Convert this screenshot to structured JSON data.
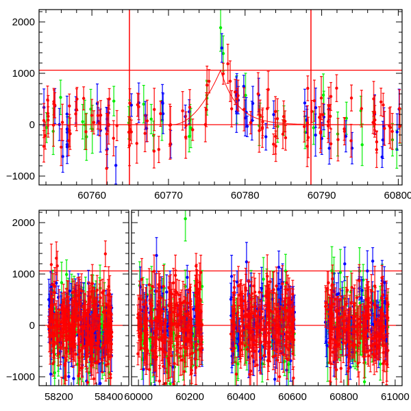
{
  "chart_data": [
    {
      "type": "scatter",
      "panel": "top",
      "title": "",
      "xlabel": "",
      "ylabel": "",
      "xlim": [
        60753.1,
        60800.5
      ],
      "ylim": [
        -1173,
        2240
      ],
      "xticks": [
        60760,
        60770,
        60780,
        60790,
        60800
      ],
      "xtick_labels": [
        "60760",
        "60770",
        "60780",
        "60790",
        "60800"
      ],
      "yticks": [
        -1000,
        0,
        1000,
        2000
      ],
      "ytick_labels": [
        "−1000",
        "0",
        "1000",
        "2000"
      ],
      "hlines": [
        0,
        1060
      ],
      "vlines": [
        60764.9,
        60788.6
      ],
      "reference_color": "#ff0000",
      "model_curve": {
        "baseline": 0,
        "peak": 1060,
        "t_peak": 60776.8,
        "rise_start": 60770.5,
        "decay_tau_days": 2.2
      },
      "series": [
        {
          "name": "blue",
          "color": "#0000ff",
          "error_bars": true
        },
        {
          "name": "green",
          "color": "#00ee00",
          "error_bars": true
        },
        {
          "name": "red",
          "color": "#ff0000",
          "error_bars": true
        }
      ],
      "time_range_observed": [
        60753.5,
        60800.5
      ],
      "scatter_rms": 300,
      "seed": 7
    },
    {
      "type": "scatter",
      "panel": "bottom",
      "title": "",
      "xlabel": "",
      "ylabel": "",
      "broken_axis": true,
      "segments": [
        {
          "xlim": [
            58121,
            58480
          ],
          "xticks": [
            58200,
            58400
          ],
          "xtick_labels": [
            "58200",
            "58400"
          ],
          "clusters": [
            [
              58160,
              58413
            ]
          ]
        },
        {
          "xlim": [
            59973,
            61027
          ],
          "xticks": [
            60000,
            60200,
            60400,
            60600,
            60800,
            61000
          ],
          "xtick_labels": [
            "60000",
            "60200",
            "60400",
            "60600",
            "60800",
            "61000"
          ],
          "clusters": [
            [
              59997,
              60248
            ],
            [
              60360,
              60608
            ],
            [
              60728,
              60973
            ]
          ]
        }
      ],
      "ylim": [
        -1173,
        2240
      ],
      "yticks": [
        -1000,
        0,
        1000,
        2000
      ],
      "ytick_labels": [
        "−1000",
        "0",
        "1000",
        "2000"
      ],
      "hlines": [
        0,
        1060
      ],
      "series": [
        {
          "name": "blue",
          "color": "#0000ff",
          "error_bars": true
        },
        {
          "name": "green",
          "color": "#00ee00",
          "error_bars": true
        },
        {
          "name": "red",
          "color": "#ff0000",
          "error_bars": true
        }
      ],
      "scatter_rms": 450,
      "seed": 11
    }
  ]
}
